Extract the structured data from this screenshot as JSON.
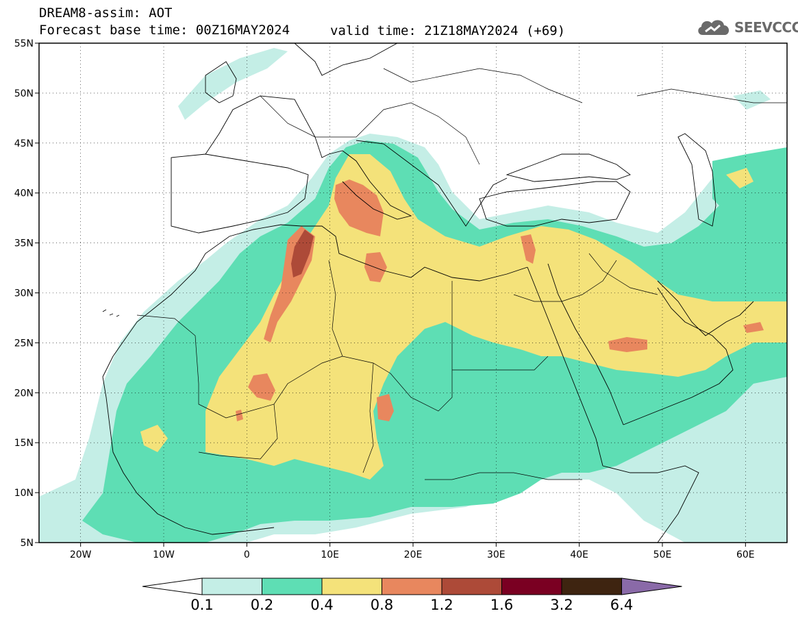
{
  "header": {
    "title": "DREAM8-assim: AOT",
    "base_time": "Forecast base time: 00Z16MAY2024",
    "valid_time": "valid time: 21Z18MAY2024 (+69)",
    "logo_text": "SEEVCCC",
    "logo_icon": "cloud-icon"
  },
  "map": {
    "lon_range": [
      -25,
      65
    ],
    "lat_range": [
      5,
      55
    ],
    "lat_labels": [
      "55N",
      "50N",
      "45N",
      "40N",
      "35N",
      "30N",
      "25N",
      "20N",
      "15N",
      "10N",
      "5N"
    ],
    "lon_labels": [
      "20W",
      "10W",
      "0",
      "10E",
      "20E",
      "30E",
      "40E",
      "50E",
      "60E"
    ],
    "grid_style": "dotted"
  },
  "colorbar": {
    "labels": [
      "0.1",
      "0.2",
      "0.4",
      "0.8",
      "1.2",
      "1.6",
      "3.2",
      "6.4"
    ],
    "colors": [
      "#ffffff",
      "#c4eee6",
      "#5ede b4",
      "#f4e27a",
      "#e8875e",
      "#ad4a38",
      "#7a0022",
      "#3e2410",
      "#8a6aa8"
    ]
  },
  "chart_data": {
    "type": "heatmap",
    "title": "DREAM8-assim: AOT",
    "levels": [
      0.1,
      0.2,
      0.4,
      0.8,
      1.2,
      1.6,
      3.2,
      6.4
    ],
    "level_colors": [
      "#c4eee6",
      "#5edeb4",
      "#f4e27a",
      "#e8875e",
      "#ad4a38",
      "#7a0022",
      "#3e2410",
      "#8a6aa8"
    ],
    "xlim": [
      -25,
      65
    ],
    "ylim": [
      5,
      55
    ]
  }
}
